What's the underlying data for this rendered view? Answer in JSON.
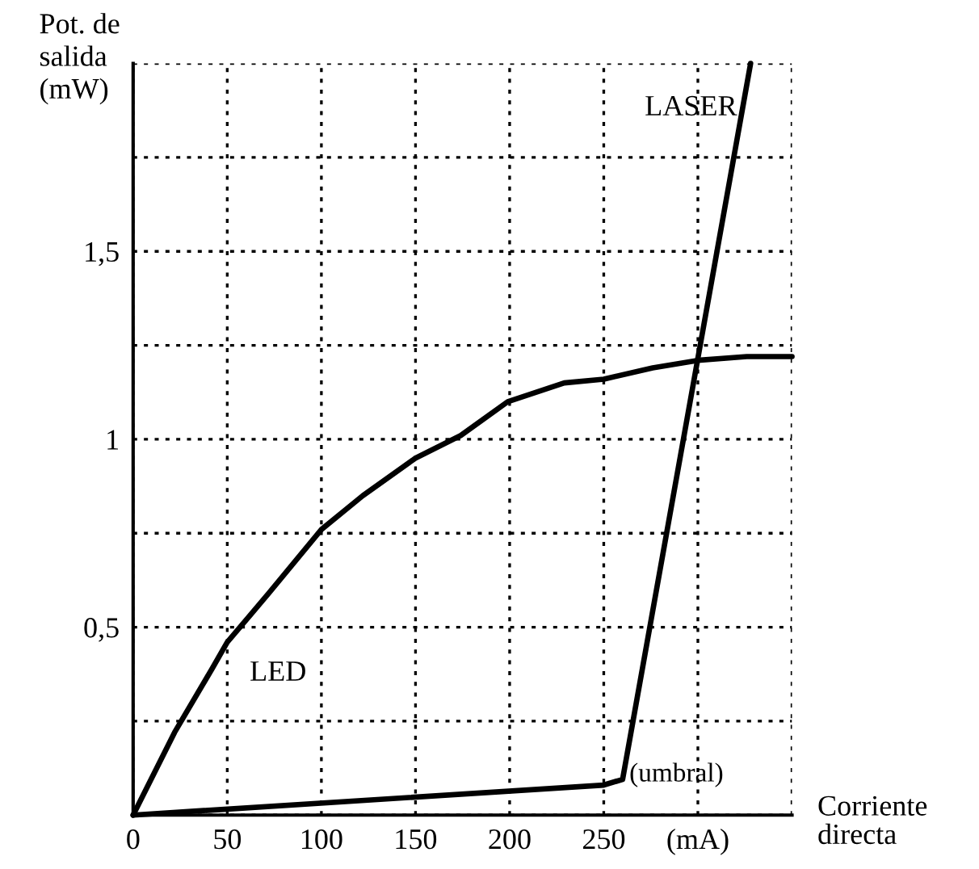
{
  "chart_data": {
    "type": "line",
    "xlabel": "Corriente\ndirecta",
    "ylabel": "Pot. de\nsalida\n(mW)",
    "series": [
      {
        "name": "LED",
        "color": "#000000",
        "x": [
          0,
          22,
          42,
          50,
          72,
          100,
          122,
          150,
          174,
          199,
          229,
          250,
          276,
          300,
          326,
          350
        ],
        "values": [
          0,
          0.22,
          0.39,
          0.46,
          0.59,
          0.76,
          0.85,
          0.95,
          1.01,
          1.1,
          1.15,
          1.16,
          1.19,
          1.21,
          1.22,
          1.22
        ]
      },
      {
        "name": "LASER",
        "color": "#000000",
        "x": [
          0,
          250,
          260,
          328
        ],
        "values": [
          0,
          0.08,
          0.095,
          2.0
        ]
      }
    ],
    "annotations": [
      {
        "text": "(umbral)",
        "x": 260,
        "y": 0.095
      }
    ],
    "xlim": [
      0,
      350
    ],
    "ylim": [
      0,
      2
    ],
    "xticks": [
      0,
      50,
      100,
      150,
      200,
      250,
      {
        "value": 300,
        "label": "(mA)"
      },
      {
        "value": 350,
        "label": null
      }
    ],
    "yticks": [
      {
        "value": 0,
        "label": null
      },
      {
        "value": 0.25,
        "label": null
      },
      {
        "value": 0.5,
        "label": "0,5"
      },
      {
        "value": 0.75,
        "label": null
      },
      {
        "value": 1,
        "label": "1"
      },
      {
        "value": 1.25,
        "label": null
      },
      {
        "value": 1.5,
        "label": "1,5"
      },
      {
        "value": 1.75,
        "label": null
      },
      {
        "value": 2,
        "label": null
      }
    ],
    "grid": true,
    "legend": false,
    "marker": "none",
    "line_style": "solid"
  }
}
